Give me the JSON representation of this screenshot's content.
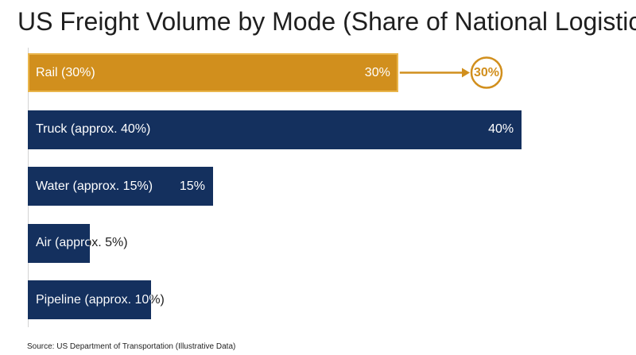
{
  "title": "US Freight Volume by Mode (Share of National Logistics)",
  "source": "Source: US Department of Transportation (Illustrative Data)",
  "colors": {
    "highlight": "#D18F1D",
    "highlight_border": "#E9B54B",
    "bar": "#14305E",
    "label_on_bar": "#FFFFFF",
    "label_off_bar": "#1F1F1F"
  },
  "chart_data": {
    "type": "bar",
    "orientation": "horizontal",
    "title": "US Freight Volume by Mode (Share of National Logistics)",
    "categories": [
      "Rail (30%)",
      "Truck (approx. 40%)",
      "Water (approx. 15%)",
      "Air (approx. 5%)",
      "Pipeline (approx. 10%)"
    ],
    "values": [
      30,
      40,
      15,
      5,
      10
    ],
    "value_labels": [
      "30%",
      "40%",
      "15%",
      "",
      ""
    ],
    "highlighted": "Rail (30%)",
    "callout": {
      "category": "Rail (30%)",
      "label": "30%"
    },
    "xlim": [
      0,
      55
    ],
    "grid": false,
    "legend": "none"
  }
}
